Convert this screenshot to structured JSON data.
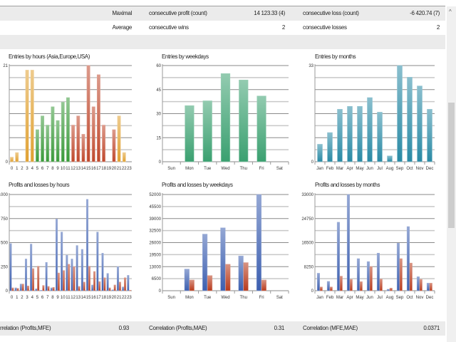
{
  "stats": {
    "row1": {
      "label": "Maximal",
      "left_name": "consecutive profit (count)",
      "left_value": "14 123.33 (4)",
      "right_name": "consecutive loss (count)",
      "right_value": "-6 420.74 (7)"
    },
    "row2": {
      "label": "Average",
      "left_name": "consecutive wins",
      "left_value": "2",
      "right_name": "consecutive losses",
      "right_value": "2"
    },
    "bottom": {
      "c1_name": "rrelation (Profits,MFE)",
      "c1_value": "0.93",
      "c2_name": "Correlation (Profits,MAE)",
      "c2_value": "0.31",
      "c3_name": "Correlation (MFE,MAE)",
      "c3_value": "0.0371"
    }
  },
  "scrollbar": {
    "up_arrow": "^"
  },
  "colors": {
    "orange": "#e0a030",
    "green": "#3a9a3a",
    "red": "#c0482c",
    "teal": "#2a8aa5",
    "profit": "#3c5fb0",
    "loss": "#b83a1c",
    "mint": "#3aa070"
  },
  "chart_data": [
    {
      "id": "entries_hours",
      "type": "bar",
      "title": "Entries by hours (Asia,Europe,USA)",
      "categories": [
        "0",
        "1",
        "2",
        "3",
        "4",
        "5",
        "6",
        "7",
        "8",
        "9",
        "10",
        "11",
        "12",
        "13",
        "14",
        "15",
        "16",
        "17",
        "18",
        "19",
        "20",
        "21",
        "22",
        "23"
      ],
      "values": [
        1,
        2,
        0,
        20,
        20,
        7,
        10,
        8,
        12,
        9,
        13,
        14,
        8,
        10,
        6,
        21,
        12,
        19,
        8,
        0,
        7,
        10,
        2,
        0
      ],
      "bar_colors": [
        "orange",
        "orange",
        "orange",
        "orange",
        "orange",
        "green",
        "green",
        "green",
        "green",
        "green",
        "green",
        "green",
        "red",
        "red",
        "red",
        "red",
        "red",
        "red",
        "red",
        "red",
        "red",
        "orange",
        "orange",
        "orange"
      ],
      "ylim": [
        0,
        21
      ],
      "yticks": [
        "0",
        "21"
      ],
      "grid": true
    },
    {
      "id": "entries_weekdays",
      "type": "bar",
      "title": "Entries by weekdays",
      "categories": [
        "Sun",
        "Mon",
        "Tue",
        "Wed",
        "Thu",
        "Fri",
        "Sat"
      ],
      "values": [
        0,
        35,
        38,
        55,
        51,
        41,
        0
      ],
      "ylim": [
        0,
        60
      ],
      "yticks": [
        "0",
        "15",
        "30",
        "45",
        "60"
      ],
      "grid": true
    },
    {
      "id": "entries_months",
      "type": "bar",
      "title": "Entries by months",
      "categories": [
        "Jan",
        "Feb",
        "Mar",
        "Apr",
        "May",
        "Jun",
        "Jul",
        "Aug",
        "Sep",
        "Oct",
        "Nov",
        "Dec"
      ],
      "values": [
        6,
        10,
        18,
        19,
        19,
        22,
        17,
        2,
        33,
        29,
        26,
        18
      ],
      "ylim": [
        0,
        33
      ],
      "yticks": [
        "0",
        "33"
      ],
      "grid": true
    },
    {
      "id": "pl_hours",
      "type": "bar",
      "title": "Profits and losses by hours",
      "categories": [
        "0",
        "1",
        "2",
        "3",
        "4",
        "5",
        "6",
        "7",
        "8",
        "9",
        "10",
        "11",
        "12",
        "13",
        "14",
        "15",
        "16",
        "17",
        "18",
        "19",
        "20",
        "21",
        "22",
        "23"
      ],
      "series": [
        {
          "name": "Profits",
          "values": [
            490,
            30,
            70,
            330,
            485,
            20,
            5,
            295,
            30,
            745,
            610,
            370,
            330,
            470,
            430,
            950,
            60,
            610,
            390,
            180,
            10,
            250,
            40,
            160
          ]
        },
        {
          "name": "Losses",
          "values": [
            30,
            25,
            70,
            50,
            230,
            255,
            55,
            45,
            35,
            185,
            210,
            275,
            250,
            45,
            90,
            255,
            200,
            95,
            135,
            30,
            60,
            90,
            135,
            5
          ]
        }
      ],
      "ylim": [
        0,
        1000
      ],
      "yticks": [
        "0",
        "250",
        "500",
        "750",
        "1000"
      ],
      "grid": true
    },
    {
      "id": "pl_weekdays",
      "type": "bar",
      "title": "Profits and losses by weekdays",
      "categories": [
        "Sun",
        "Mon",
        "Tue",
        "Wed",
        "Thu",
        "Fri",
        "Sat"
      ],
      "series": [
        {
          "name": "Profits",
          "values": [
            0,
            11700,
            30600,
            34000,
            18800,
            52000,
            0
          ]
        },
        {
          "name": "Losses",
          "values": [
            0,
            5800,
            8200,
            14300,
            15200,
            5800,
            0
          ]
        }
      ],
      "ylim": [
        0,
        52000
      ],
      "yticks": [
        "0",
        "6500",
        "13000",
        "19500",
        "26000",
        "32500",
        "39000",
        "45500",
        "52000"
      ],
      "grid": true
    },
    {
      "id": "pl_months",
      "type": "bar",
      "title": "Profits and losses by months",
      "categories": [
        "Jan",
        "Feb",
        "Mar",
        "Apr",
        "May",
        "Jun",
        "Jul",
        "Aug",
        "Sep",
        "Oct",
        "Nov",
        "Dec"
      ],
      "series": [
        {
          "name": "Profits",
          "values": [
            6000,
            3200,
            23500,
            33000,
            11000,
            10000,
            12900,
            500,
            16300,
            22000,
            4800,
            2600
          ]
        },
        {
          "name": "Losses",
          "values": [
            1300,
            1300,
            5000,
            3900,
            3100,
            8300,
            4000,
            900,
            11000,
            9500,
            3900,
            2600
          ]
        }
      ],
      "ylim": [
        0,
        33000
      ],
      "yticks": [
        "0",
        "8250",
        "16500",
        "24750",
        "33000"
      ],
      "grid": true
    }
  ]
}
